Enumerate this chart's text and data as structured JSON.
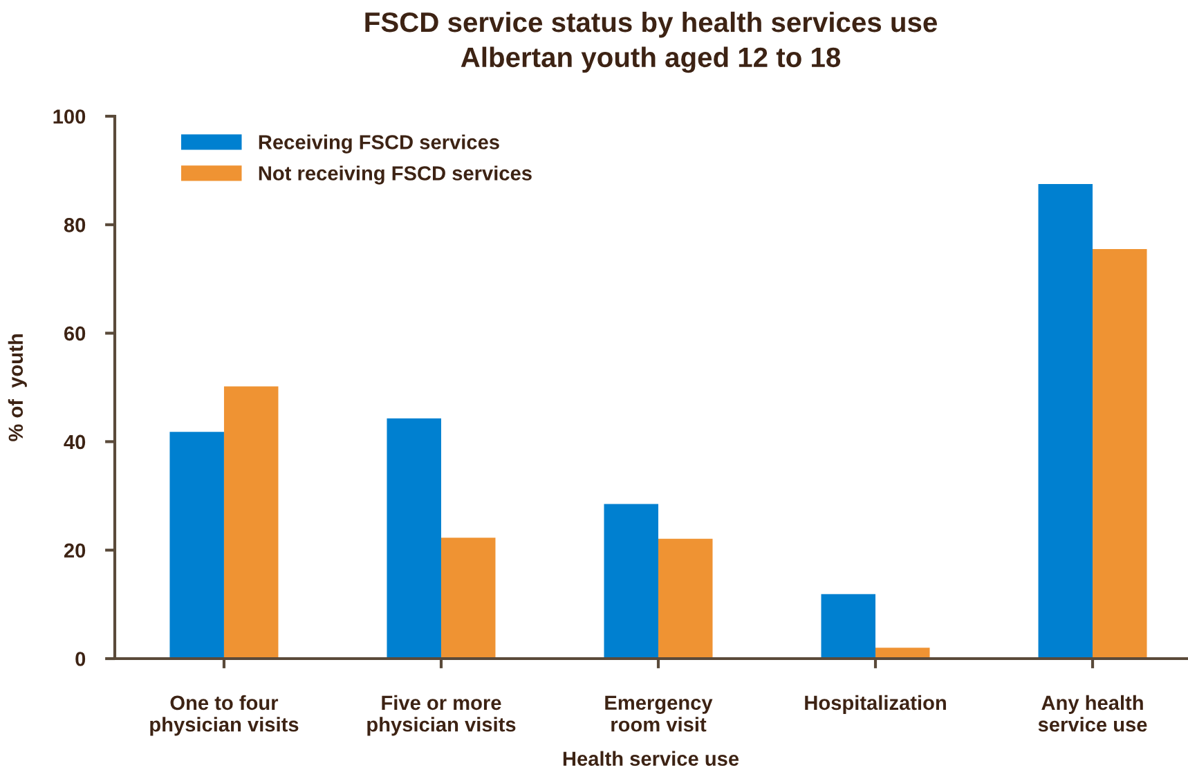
{
  "chart_data": {
    "type": "bar",
    "title": "FSCD service status by health services use\nAlbertan youth aged 12 to 18",
    "xlabel": "Health service use",
    "ylabel": "% of  youth",
    "categories": [
      "One to four\nphysician visits",
      "Five or more\nphysician visits",
      "Emergency\nroom visit",
      "Hospitalization",
      "Any health\nservice use"
    ],
    "series": [
      {
        "name": "Receiving FSCD services",
        "color": "#0080d0",
        "values": [
          41.8,
          44.3,
          28.5,
          11.9,
          87.5
        ]
      },
      {
        "name": "Not receiving FSCD services",
        "color": "#ef9333",
        "values": [
          50.2,
          22.3,
          22.1,
          2.0,
          75.5
        ]
      }
    ],
    "ylim": [
      0,
      100
    ],
    "yticks": [
      0,
      20,
      40,
      60,
      80,
      100
    ],
    "grid": false,
    "legend": "top left"
  }
}
